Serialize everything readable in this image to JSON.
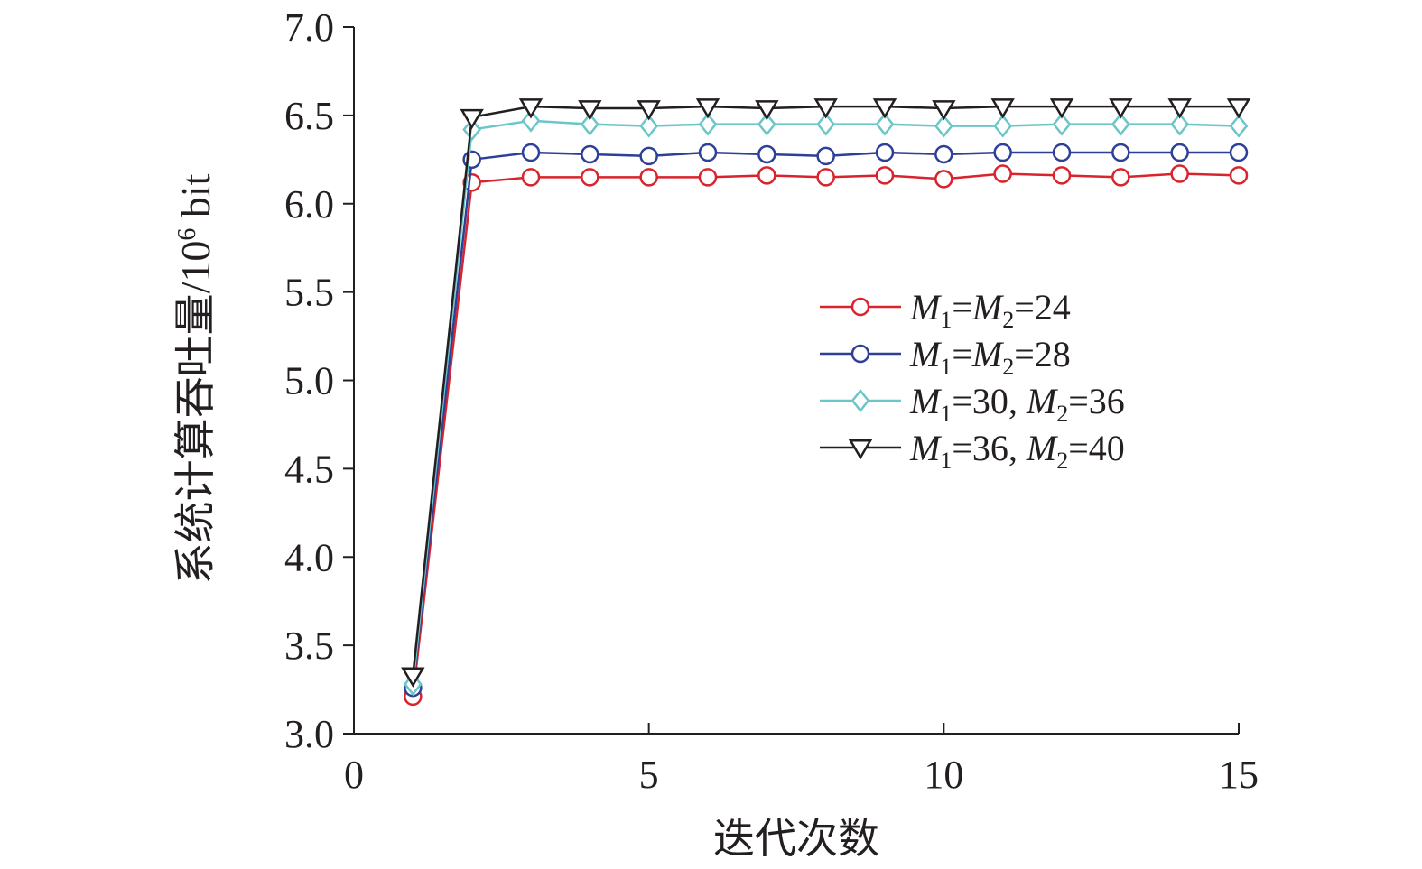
{
  "chart_data": {
    "type": "line",
    "title": "",
    "xlabel": "迭代次数",
    "ylabel": "系统计算吞吐量/10",
    "ylabel_superscript": "6",
    "ylabel_unit": " bit",
    "xlim": [
      0,
      15
    ],
    "ylim": [
      3.0,
      7.0
    ],
    "x_ticks": [
      "0",
      "5",
      "10",
      "15"
    ],
    "y_ticks": [
      "3.0",
      "3.5",
      "4.0",
      "4.5",
      "5.0",
      "5.5",
      "6.0",
      "6.5",
      "7.0"
    ],
    "grid": false,
    "legend_position": "right",
    "x": [
      1,
      2,
      3,
      4,
      5,
      6,
      7,
      8,
      9,
      10,
      11,
      12,
      13,
      14,
      15
    ],
    "series": [
      {
        "name": "M1=M2=24",
        "legend": [
          {
            "text": "M",
            "italic": true
          },
          {
            "text": "1",
            "sub": true
          },
          {
            "text": "=",
            "italic": false
          },
          {
            "text": "M",
            "italic": true
          },
          {
            "text": "2",
            "sub": true
          },
          {
            "text": "=24",
            "italic": false
          }
        ],
        "color": "#d9232d",
        "marker": "circle",
        "values": [
          3.21,
          6.12,
          6.15,
          6.15,
          6.15,
          6.15,
          6.16,
          6.15,
          6.16,
          6.14,
          6.17,
          6.16,
          6.15,
          6.17,
          6.16
        ]
      },
      {
        "name": "M1=M2=28",
        "legend": [
          {
            "text": "M",
            "italic": true
          },
          {
            "text": "1",
            "sub": true
          },
          {
            "text": "=",
            "italic": false
          },
          {
            "text": "M",
            "italic": true
          },
          {
            "text": "2",
            "sub": true
          },
          {
            "text": "=28",
            "italic": false
          }
        ],
        "color": "#2e3f98",
        "marker": "circle",
        "values": [
          3.26,
          6.25,
          6.29,
          6.28,
          6.27,
          6.29,
          6.28,
          6.27,
          6.29,
          6.28,
          6.29,
          6.29,
          6.29,
          6.29,
          6.29
        ]
      },
      {
        "name": "M1=30, M2=36",
        "legend": [
          {
            "text": "M",
            "italic": true
          },
          {
            "text": "1",
            "sub": true
          },
          {
            "text": "=30, ",
            "italic": false
          },
          {
            "text": "M",
            "italic": true
          },
          {
            "text": "2",
            "sub": true
          },
          {
            "text": "=36",
            "italic": false
          }
        ],
        "color": "#6cc6c9",
        "marker": "diamond",
        "values": [
          3.28,
          6.42,
          6.47,
          6.45,
          6.44,
          6.45,
          6.45,
          6.45,
          6.45,
          6.44,
          6.44,
          6.45,
          6.45,
          6.45,
          6.44
        ]
      },
      {
        "name": "M1=36, M2=40",
        "legend": [
          {
            "text": "M",
            "italic": true
          },
          {
            "text": "1",
            "sub": true
          },
          {
            "text": "=36, ",
            "italic": false
          },
          {
            "text": "M",
            "italic": true
          },
          {
            "text": "2",
            "sub": true
          },
          {
            "text": "=40",
            "italic": false
          }
        ],
        "color": "#231f20",
        "marker": "triangle-down",
        "values": [
          3.33,
          6.49,
          6.55,
          6.54,
          6.54,
          6.55,
          6.54,
          6.55,
          6.55,
          6.54,
          6.55,
          6.55,
          6.55,
          6.55,
          6.55
        ]
      }
    ]
  }
}
